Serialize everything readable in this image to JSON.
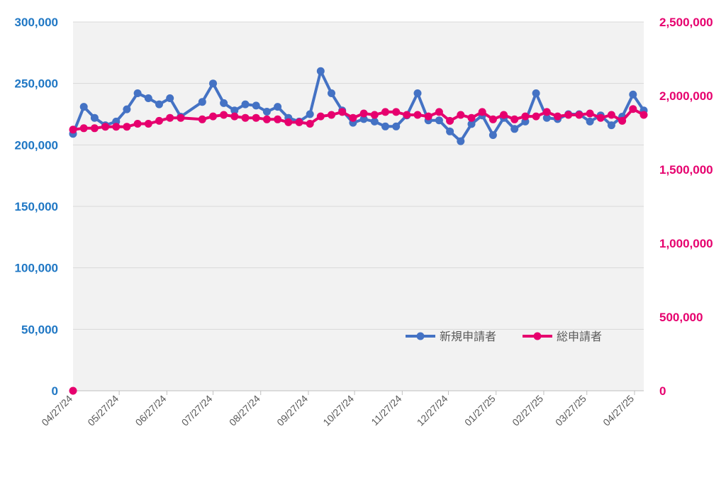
{
  "chart_data": {
    "type": "line",
    "left_axis": {
      "ylim": [
        0,
        300000
      ],
      "tick_labels": [
        "0",
        "50,000",
        "100,000",
        "150,000",
        "200,000",
        "250,000",
        "300,000"
      ],
      "color": "#1f77c4"
    },
    "right_axis": {
      "ylim": [
        0,
        2500000
      ],
      "tick_labels": [
        "0",
        "500,000",
        "1,000,000",
        "1,500,000",
        "2,000,000",
        "2,500,000"
      ],
      "color": "#e6006e"
    },
    "x_tick_labels": [
      "04/27/24",
      "05/27/24",
      "06/27/24",
      "07/27/24",
      "08/27/24",
      "09/27/24",
      "10/27/24",
      "11/27/24",
      "12/27/24",
      "01/27/25",
      "02/27/25",
      "03/27/25",
      "04/27/25"
    ],
    "grid": true,
    "legend_position": "bottom-right",
    "series": [
      {
        "name": "新規申請者",
        "axis": "left",
        "color": "#4472c4",
        "x": [
          "2024-04-27",
          "2024-05-04",
          "2024-05-11",
          "2024-05-18",
          "2024-05-25",
          "2024-06-01",
          "2024-06-08",
          "2024-06-15",
          "2024-06-22",
          "2024-06-29",
          "2024-07-06",
          "2024-07-20",
          "2024-07-27",
          "2024-08-03",
          "2024-08-10",
          "2024-08-17",
          "2024-08-24",
          "2024-08-31",
          "2024-09-07",
          "2024-09-14",
          "2024-09-21",
          "2024-09-28",
          "2024-10-05",
          "2024-10-12",
          "2024-10-19",
          "2024-10-26",
          "2024-11-02",
          "2024-11-09",
          "2024-11-16",
          "2024-11-23",
          "2024-11-30",
          "2024-12-07",
          "2024-12-14",
          "2024-12-21",
          "2024-12-28",
          "2025-01-04",
          "2025-01-11",
          "2025-01-18",
          "2025-01-25",
          "2025-02-01",
          "2025-02-08",
          "2025-02-15",
          "2025-02-22",
          "2025-03-01",
          "2025-03-08",
          "2025-03-15",
          "2025-03-22",
          "2025-03-29",
          "2025-04-05",
          "2025-04-12",
          "2025-04-19",
          "2025-04-26",
          "2025-05-03"
        ],
        "values": [
          209000,
          231000,
          222000,
          216000,
          219000,
          229000,
          242000,
          238000,
          233000,
          238000,
          223000,
          235000,
          250000,
          234000,
          228000,
          233000,
          232000,
          227000,
          231000,
          222000,
          219000,
          225000,
          260000,
          242000,
          228000,
          218000,
          221000,
          219000,
          215000,
          215000,
          224000,
          242000,
          220000,
          220000,
          211000,
          203000,
          217000,
          224000,
          208000,
          222000,
          213000,
          219000,
          242000,
          222000,
          221000,
          225000,
          225000,
          219000,
          224000,
          216000,
          223000,
          241000,
          228000
        ]
      },
      {
        "name": "総申請者",
        "axis": "right",
        "color": "#e6006e",
        "x": [
          "2024-04-27",
          "2024-04-27",
          "2024-05-04",
          "2024-05-11",
          "2024-05-18",
          "2024-05-25",
          "2024-06-01",
          "2024-06-08",
          "2024-06-15",
          "2024-06-22",
          "2024-06-29",
          "2024-07-06",
          "2024-07-20",
          "2024-07-27",
          "2024-08-03",
          "2024-08-10",
          "2024-08-17",
          "2024-08-24",
          "2024-08-31",
          "2024-09-07",
          "2024-09-14",
          "2024-09-21",
          "2024-09-28",
          "2024-10-05",
          "2024-10-12",
          "2024-10-19",
          "2024-10-26",
          "2024-11-02",
          "2024-11-09",
          "2024-11-16",
          "2024-11-23",
          "2024-11-30",
          "2024-12-07",
          "2024-12-14",
          "2024-12-21",
          "2024-12-28",
          "2025-01-04",
          "2025-01-11",
          "2025-01-18",
          "2025-01-25",
          "2025-02-01",
          "2025-02-08",
          "2025-02-15",
          "2025-02-22",
          "2025-03-01",
          "2025-03-08",
          "2025-03-15",
          "2025-03-22",
          "2025-03-29",
          "2025-04-05",
          "2025-04-12",
          "2025-04-19",
          "2025-04-26",
          "2025-05-03"
        ],
        "values": [
          0,
          1770000,
          1780000,
          1780000,
          1790000,
          1790000,
          1790000,
          1810000,
          1810000,
          1830000,
          1850000,
          1850000,
          1840000,
          1860000,
          1870000,
          1860000,
          1850000,
          1850000,
          1840000,
          1840000,
          1820000,
          1820000,
          1810000,
          1860000,
          1870000,
          1890000,
          1850000,
          1880000,
          1870000,
          1890000,
          1890000,
          1870000,
          1870000,
          1860000,
          1890000,
          1830000,
          1870000,
          1850000,
          1890000,
          1840000,
          1870000,
          1840000,
          1860000,
          1860000,
          1890000,
          1860000,
          1870000,
          1870000,
          1880000,
          1850000,
          1870000,
          1830000,
          1910000,
          1870000
        ]
      }
    ]
  }
}
